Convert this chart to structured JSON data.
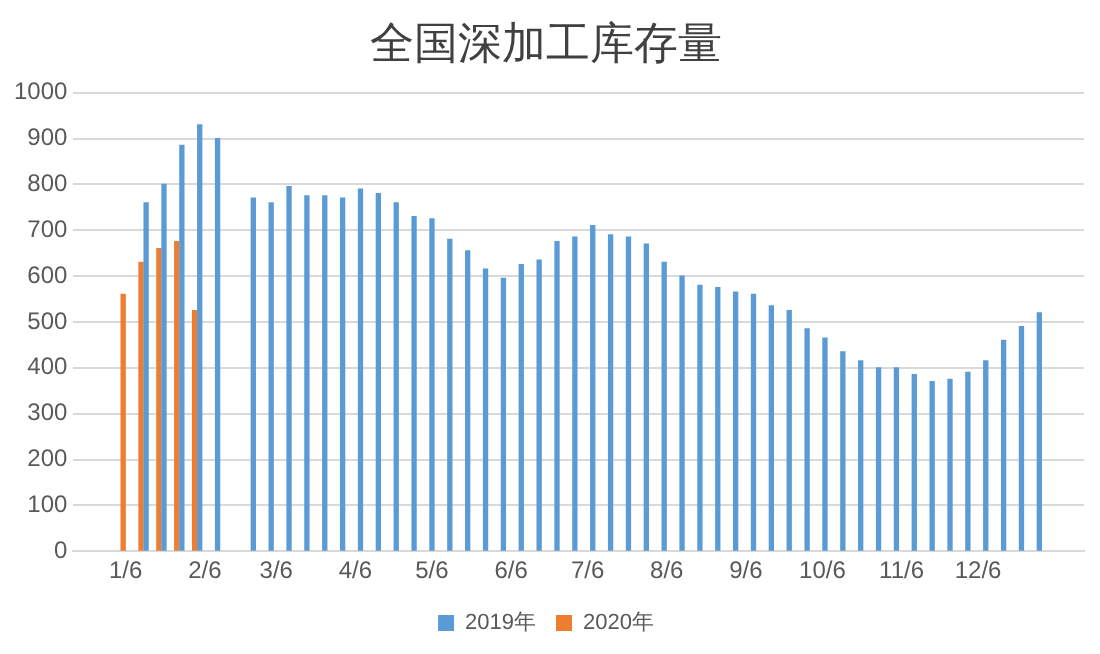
{
  "chart_data": {
    "type": "bar",
    "title": "全国深加工库存量",
    "series": [
      {
        "name": "2019年",
        "color": "#5b9bd5",
        "x": [
          "--01-14",
          "--01-21",
          "--01-28",
          "--02-04",
          "--02-11",
          "--02-25",
          "--03-04",
          "--03-11",
          "--03-18",
          "--03-25",
          "--04-01",
          "--04-08",
          "--04-15",
          "--04-22",
          "--04-29",
          "--05-06",
          "--05-13",
          "--05-20",
          "--05-27",
          "--06-03",
          "--06-10",
          "--06-17",
          "--06-24",
          "--07-01",
          "--07-08",
          "--07-15",
          "--07-22",
          "--07-29",
          "--08-05",
          "--08-12",
          "--08-19",
          "--08-26",
          "--09-02",
          "--09-09",
          "--09-16",
          "--09-23",
          "--09-30",
          "--10-07",
          "--10-14",
          "--10-21",
          "--10-28",
          "--11-04",
          "--11-11",
          "--11-18",
          "--11-25",
          "--12-02",
          "--12-09",
          "--12-16",
          "--12-23",
          "--12-30"
        ],
        "values": [
          760,
          800,
          885,
          930,
          900,
          770,
          760,
          795,
          775,
          775,
          770,
          790,
          780,
          760,
          730,
          725,
          680,
          655,
          615,
          595,
          625,
          635,
          675,
          685,
          710,
          690,
          685,
          670,
          630,
          600,
          580,
          575,
          565,
          560,
          535,
          525,
          485,
          465,
          435,
          415,
          400,
          400,
          385,
          370,
          375,
          390,
          415,
          460,
          490,
          520
        ]
      },
      {
        "name": "2020年",
        "color": "#ed7d31",
        "x": [
          "--01-05",
          "--01-12",
          "--01-19",
          "--01-26",
          "--02-02"
        ],
        "values": [
          560,
          630,
          660,
          675,
          525
        ]
      }
    ],
    "xlim": [
      "--01-02",
      "--12-31"
    ],
    "xticks": [
      {
        "value": "--01-06",
        "label": "1/6"
      },
      {
        "value": "--02-06",
        "label": "2/6"
      },
      {
        "value": "--03-06",
        "label": "3/6"
      },
      {
        "value": "--04-06",
        "label": "4/6"
      },
      {
        "value": "--05-06",
        "label": "5/6"
      },
      {
        "value": "--06-06",
        "label": "6/6"
      },
      {
        "value": "--07-06",
        "label": "7/6"
      },
      {
        "value": "--08-06",
        "label": "8/6"
      },
      {
        "value": "--09-06",
        "label": "9/6"
      },
      {
        "value": "--10-06",
        "label": "10/6"
      },
      {
        "value": "--11-06",
        "label": "11/6"
      },
      {
        "value": "--12-06",
        "label": "12/6"
      }
    ],
    "ylim": [
      0,
      1000
    ],
    "yticks": [
      0,
      100,
      200,
      300,
      400,
      500,
      600,
      700,
      800,
      900,
      1000
    ],
    "grid": "y",
    "legend": "bottom"
  }
}
